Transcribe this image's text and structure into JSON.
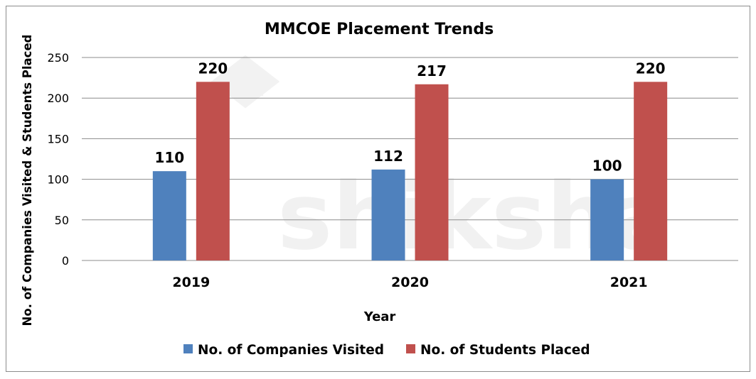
{
  "watermark": "shiksha",
  "chart_data": {
    "type": "bar",
    "title": "MMCOE Placement Trends",
    "xlabel": "Year",
    "ylabel": "No. of Companies Visited & Students Placed",
    "categories": [
      "2019",
      "2020",
      "2021"
    ],
    "series": [
      {
        "name": "No. of Companies Visited",
        "color": "#4f81bd",
        "values": [
          110,
          112,
          100
        ],
        "labels": [
          "110",
          "112",
          "100"
        ]
      },
      {
        "name": "No. of Students Placed",
        "color": "#c0504d",
        "values": [
          220,
          217,
          220
        ],
        "labels": [
          "220",
          "217",
          "220"
        ]
      }
    ],
    "ylim": [
      0,
      250
    ],
    "yticks": [
      "0",
      "50",
      "100",
      "150",
      "200",
      "250"
    ],
    "grid": true,
    "legend_position": "bottom"
  }
}
